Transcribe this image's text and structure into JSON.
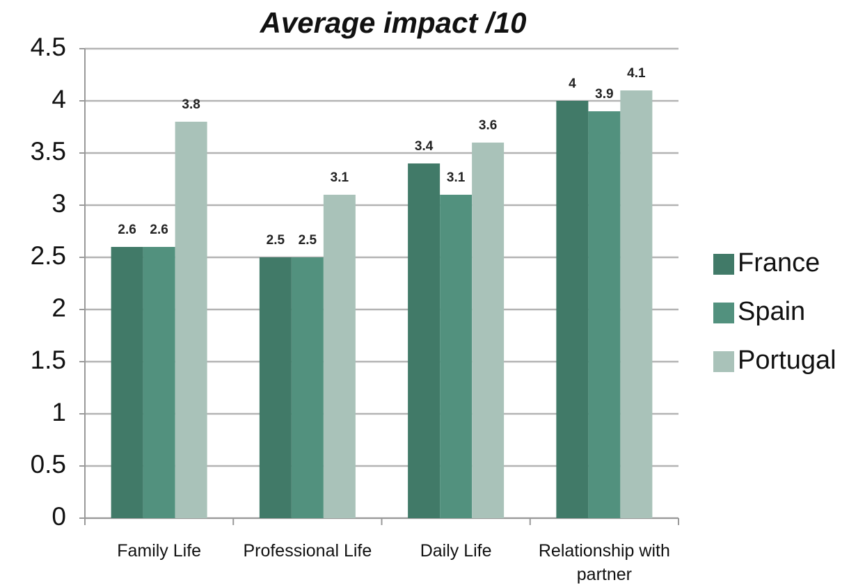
{
  "chart_data": {
    "type": "bar",
    "title": "Average impact /10",
    "categories": [
      "Family Life",
      "Professional Life",
      "Daily Life",
      "Relationship with partner"
    ],
    "series": [
      {
        "name": "France",
        "color": "#417a68",
        "values": [
          2.6,
          2.5,
          3.4,
          4
        ]
      },
      {
        "name": "Spain",
        "color": "#52917e",
        "values": [
          2.6,
          2.5,
          3.1,
          3.9
        ]
      },
      {
        "name": "Portugal",
        "color": "#a9c2b9",
        "values": [
          3.8,
          3.1,
          3.6,
          4.1
        ]
      }
    ],
    "ylim": [
      0,
      4.5
    ],
    "yticks": [
      0,
      0.5,
      1,
      1.5,
      2,
      2.5,
      3,
      3.5,
      4,
      4.5
    ],
    "grid": true,
    "legend": "right"
  }
}
